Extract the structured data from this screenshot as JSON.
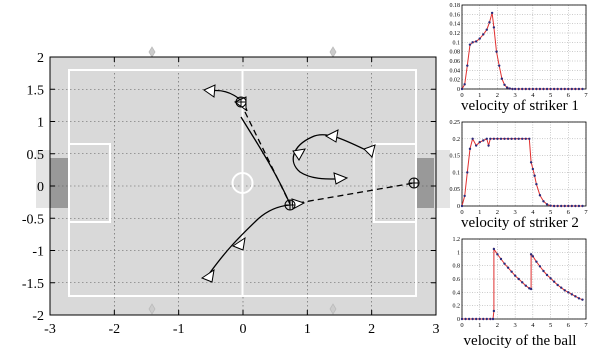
{
  "field": {
    "x_ticks": [
      "-3",
      "-2",
      "-1",
      "0",
      "1",
      "2",
      "3"
    ],
    "y_ticks": [
      "2",
      "1.5",
      "1",
      "0.5",
      "0",
      "-0.5",
      "-1",
      "-1.5",
      "-2"
    ],
    "colors": {
      "pitch": "#d9d9d9",
      "goal_area": "#999999",
      "trajectory": "#000000",
      "pass_line": "#000000",
      "field_line": "#ffffff",
      "grid": "#555555"
    },
    "ball_marker": "crossed-circle-icon",
    "robot_marker": "triangle-icon"
  },
  "chart_data": [
    {
      "type": "line",
      "title": "velocity of striker 1",
      "x_ticks": [
        "0",
        "1",
        "2",
        "3",
        "4",
        "5",
        "6",
        "7"
      ],
      "y_ticks": [
        "0",
        "0.02",
        "0.04",
        "0.06",
        "0.08",
        "0.1",
        "0.12",
        "0.14",
        "0.16",
        "0.18"
      ],
      "xlim": [
        0,
        7
      ],
      "ylim": [
        0,
        0.18
      ],
      "grid": true,
      "series": [
        {
          "color": "#e03030",
          "marker_color": "#2b2b7a",
          "x": [
            0,
            0.15,
            0.3,
            0.45,
            0.6,
            0.8,
            1.0,
            1.2,
            1.4,
            1.55,
            1.7,
            1.8,
            1.95,
            2.1,
            2.25,
            2.4,
            2.55,
            2.7,
            2.85,
            3.0,
            3.2,
            3.4,
            3.6,
            3.8,
            4.0,
            4.2,
            4.4,
            4.6,
            4.8,
            5.0,
            5.2,
            5.4,
            5.6,
            5.8,
            6.0,
            6.2,
            6.4,
            6.6,
            6.8
          ],
          "y": [
            0,
            0.01,
            0.05,
            0.095,
            0.1,
            0.102,
            0.108,
            0.117,
            0.127,
            0.143,
            0.163,
            0.132,
            0.08,
            0.05,
            0.022,
            0.009,
            0.003,
            0.001,
            0,
            0,
            0,
            0,
            0,
            0,
            0,
            0,
            0,
            0,
            0,
            0,
            0,
            0,
            0,
            0,
            0,
            0,
            0,
            0,
            0
          ]
        }
      ]
    },
    {
      "type": "line",
      "title": "velocity of striker 2",
      "x_ticks": [
        "0",
        "1",
        "2",
        "3",
        "4",
        "5",
        "6",
        "7"
      ],
      "y_ticks": [
        "0",
        "0.05",
        "0.1",
        "0.15",
        "0.2",
        "0.25"
      ],
      "xlim": [
        0,
        7
      ],
      "ylim": [
        0,
        0.25
      ],
      "grid": true,
      "series": [
        {
          "color": "#e03030",
          "marker_color": "#2b2b7a",
          "x": [
            0,
            0.15,
            0.3,
            0.45,
            0.6,
            0.8,
            1.0,
            1.2,
            1.4,
            1.5,
            1.6,
            1.8,
            2.0,
            2.2,
            2.4,
            2.6,
            2.8,
            3.0,
            3.2,
            3.4,
            3.6,
            3.8,
            3.9,
            4.0,
            4.1,
            4.2,
            4.4,
            4.6,
            4.8,
            5.0,
            5.2,
            5.4,
            5.6,
            5.8,
            6.0,
            6.2,
            6.4,
            6.6,
            6.8
          ],
          "y": [
            0,
            0.03,
            0.1,
            0.17,
            0.2,
            0.18,
            0.19,
            0.195,
            0.2,
            0.18,
            0.2,
            0.2,
            0.2,
            0.2,
            0.2,
            0.2,
            0.2,
            0.2,
            0.2,
            0.2,
            0.2,
            0.2,
            0.13,
            0.11,
            0.09,
            0.065,
            0.032,
            0.014,
            0.005,
            0.001,
            0,
            0,
            0,
            0,
            0,
            0,
            0,
            0,
            0
          ]
        }
      ]
    },
    {
      "type": "line",
      "title": "velocity of the ball",
      "x_ticks": [
        "0",
        "1",
        "2",
        "3",
        "4",
        "5",
        "6",
        "7"
      ],
      "y_ticks": [
        "0",
        "0.2",
        "0.4",
        "0.6",
        "0.8",
        "1",
        "1.2"
      ],
      "xlim": [
        0,
        7
      ],
      "ylim": [
        0,
        1.2
      ],
      "grid": true,
      "series": [
        {
          "color": "#e03030",
          "marker_color": "#2b2b7a",
          "x": [
            0,
            0.2,
            0.4,
            0.6,
            0.8,
            1.0,
            1.2,
            1.4,
            1.6,
            1.75,
            1.8,
            1.8,
            2.0,
            2.2,
            2.4,
            2.6,
            2.8,
            3.0,
            3.2,
            3.4,
            3.6,
            3.8,
            3.9,
            3.9,
            4.0,
            4.2,
            4.4,
            4.6,
            4.8,
            5.0,
            5.2,
            5.4,
            5.6,
            5.8,
            6.0,
            6.2,
            6.4,
            6.6,
            6.8
          ],
          "y": [
            0,
            0,
            0,
            0,
            0,
            0,
            0,
            0,
            0,
            0,
            0.12,
            1.05,
            0.97,
            0.9,
            0.83,
            0.77,
            0.71,
            0.65,
            0.6,
            0.55,
            0.5,
            0.46,
            0.45,
            0.97,
            0.94,
            0.86,
            0.79,
            0.72,
            0.66,
            0.61,
            0.56,
            0.51,
            0.47,
            0.43,
            0.4,
            0.37,
            0.34,
            0.31,
            0.29
          ]
        }
      ]
    }
  ]
}
